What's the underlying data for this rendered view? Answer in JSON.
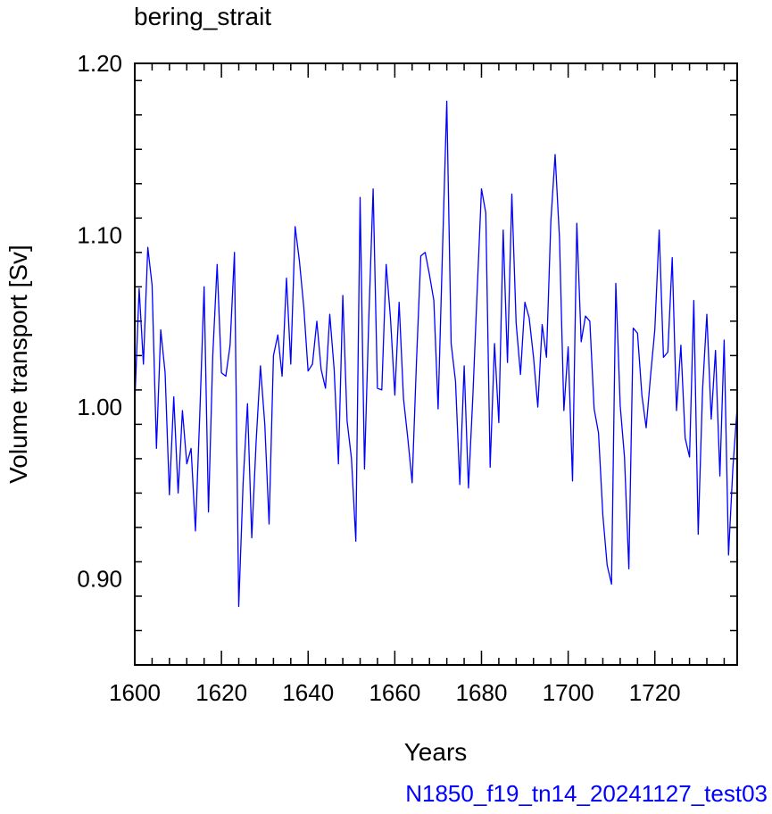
{
  "chart_data": {
    "type": "line",
    "title": "bering_strait",
    "xlabel": "Years",
    "ylabel": "Volume transport [Sv]",
    "case_label": "N1850_f19_tn14_20241127_test03",
    "xlim": [
      1600,
      1739
    ],
    "ylim": [
      0.85,
      1.2
    ],
    "x_ticks": [
      1600,
      1620,
      1640,
      1660,
      1680,
      1700,
      1720
    ],
    "x_tick_labels": [
      "1600",
      "1620",
      "1640",
      "1660",
      "1680",
      "1700",
      "1720"
    ],
    "y_ticks": [
      0.9,
      1.0,
      1.1,
      1.2
    ],
    "y_tick_labels": [
      "0.90",
      "1.00",
      "1.10",
      "1.20"
    ],
    "grid": false,
    "colors": {
      "line": "#0000ff",
      "case_label": "#0000ff",
      "axis": "#000000"
    },
    "series": [
      {
        "x": [
          1600,
          1601,
          1602,
          1603,
          1604,
          1605,
          1606,
          1607,
          1608,
          1609,
          1610,
          1611,
          1612,
          1613,
          1614,
          1615,
          1616,
          1617,
          1618,
          1619,
          1620,
          1621,
          1622,
          1623,
          1624,
          1625,
          1626,
          1627,
          1628,
          1629,
          1630,
          1631,
          1632,
          1633,
          1634,
          1635,
          1636,
          1637,
          1638,
          1639,
          1640,
          1641,
          1642,
          1643,
          1644,
          1645,
          1646,
          1647,
          1648,
          1649,
          1650,
          1651,
          1652,
          1653,
          1654,
          1655,
          1656,
          1657,
          1658,
          1659,
          1660,
          1661,
          1662,
          1663,
          1664,
          1665,
          1666,
          1667,
          1668,
          1669,
          1670,
          1671,
          1672,
          1673,
          1674,
          1675,
          1676,
          1677,
          1678,
          1679,
          1680,
          1681,
          1682,
          1683,
          1684,
          1685,
          1686,
          1687,
          1688,
          1689,
          1690,
          1691,
          1692,
          1693,
          1694,
          1695,
          1696,
          1697,
          1698,
          1699,
          1700,
          1701,
          1702,
          1703,
          1704,
          1705,
          1706,
          1707,
          1708,
          1709,
          1710,
          1711,
          1712,
          1713,
          1714,
          1715,
          1716,
          1717,
          1718,
          1719,
          1720,
          1721,
          1722,
          1723,
          1724,
          1725,
          1726,
          1727,
          1728,
          1729,
          1730,
          1731,
          1732,
          1733,
          1734,
          1735,
          1736,
          1737,
          1738,
          1739
        ],
        "values": [
          1.002,
          1.069,
          1.025,
          1.093,
          1.071,
          0.976,
          1.045,
          1.02,
          0.949,
          1.006,
          0.95,
          0.998,
          0.967,
          0.976,
          0.928,
          0.995,
          1.07,
          0.939,
          1.03,
          1.083,
          1.02,
          1.018,
          1.036,
          1.09,
          0.884,
          0.956,
          1.002,
          0.924,
          0.98,
          1.024,
          0.99,
          0.932,
          1.03,
          1.042,
          1.018,
          1.075,
          1.025,
          1.105,
          1.085,
          1.058,
          1.021,
          1.025,
          1.05,
          1.022,
          1.011,
          1.054,
          1.022,
          0.967,
          1.065,
          0.992,
          0.97,
          0.922,
          1.122,
          0.964,
          1.051,
          1.127,
          1.011,
          1.01,
          1.083,
          1.052,
          1.007,
          1.061,
          1.005,
          0.982,
          0.956,
          1.026,
          1.088,
          1.09,
          1.077,
          1.062,
          0.999,
          1.091,
          1.178,
          1.037,
          1.015,
          0.955,
          1.024,
          0.953,
          1.006,
          1.067,
          1.127,
          1.113,
          0.965,
          1.037,
          0.991,
          1.103,
          1.026,
          1.124,
          1.049,
          1.019,
          1.061,
          1.052,
          1.029,
          1.0,
          1.048,
          1.029,
          1.108,
          1.147,
          1.098,
          0.998,
          1.035,
          0.957,
          1.107,
          1.038,
          1.053,
          1.05,
          0.999,
          0.985,
          0.937,
          0.908,
          0.897,
          1.072,
          1.001,
          0.971,
          0.906,
          1.046,
          1.043,
          1.007,
          0.988,
          1.018,
          1.045,
          1.103,
          1.029,
          1.032,
          1.087,
          0.998,
          1.036,
          0.982,
          0.971,
          1.062,
          0.926,
          1.01,
          1.054,
          0.993,
          1.033,
          0.96,
          1.039,
          0.914,
          0.964,
          1.0
        ]
      }
    ]
  }
}
